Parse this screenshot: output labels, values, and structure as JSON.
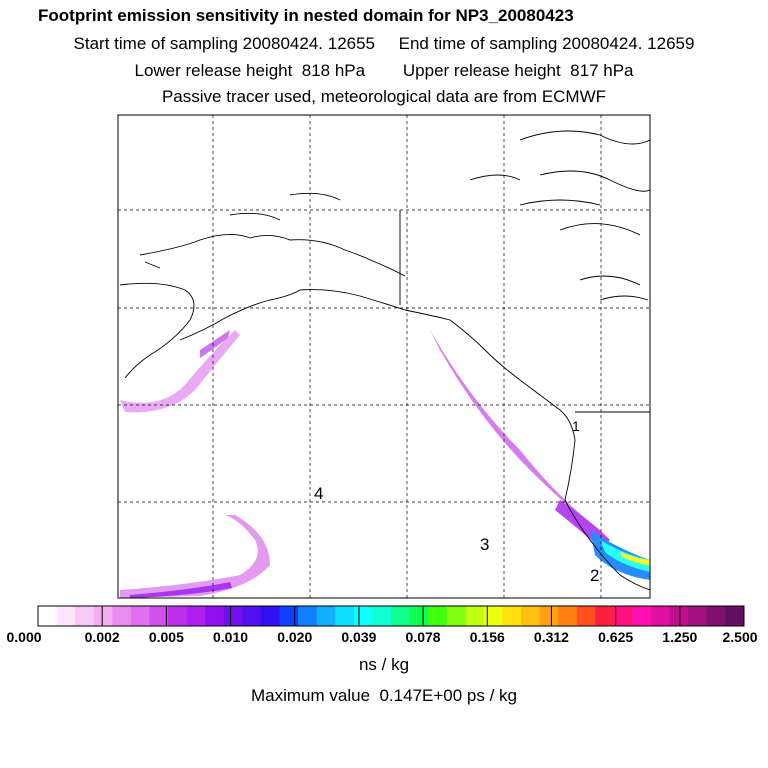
{
  "header": {
    "title": "Footprint emission sensitivity in nested domain for NP3_20080423",
    "line2": "Start time of sampling 20080424. 12655     End time of sampling 20080424. 12659",
    "line3": "Lower release height  818 hPa        Upper release height  817 hPa",
    "line4": "Passive tracer used, meteorological data are from ECMWF"
  },
  "map": {
    "markers": [
      "4",
      "3",
      "2",
      "1"
    ]
  },
  "colorbar": {
    "colors": [
      "#ffffff",
      "#fce4fc",
      "#f8c8f8",
      "#f4aef4",
      "#ec8cf0",
      "#e070f0",
      "#d050f0",
      "#c030f0",
      "#b020f0",
      "#9010f0",
      "#7010f0",
      "#5010f0",
      "#3010f0",
      "#1040ff",
      "#1080ff",
      "#10b0ff",
      "#10e0ff",
      "#10ffff",
      "#10ffd0",
      "#10ff90",
      "#10ff50",
      "#40ff10",
      "#80ff10",
      "#c0ff10",
      "#f0ff10",
      "#ffe010",
      "#ffc010",
      "#ffa010",
      "#ff8010",
      "#ff5020",
      "#ff2040",
      "#ff1080",
      "#ff10b0",
      "#e010a0",
      "#c01090",
      "#a01080",
      "#801070",
      "#601060"
    ],
    "labels": [
      "0.000",
      "0.002",
      "0.005",
      "0.010",
      "0.020",
      "0.039",
      "0.078",
      "0.156",
      "0.312",
      "0.625",
      "1.250",
      "2.500"
    ]
  },
  "units": "ns / kg",
  "max_value": "Maximum value  0.147E+00 ps / kg"
}
